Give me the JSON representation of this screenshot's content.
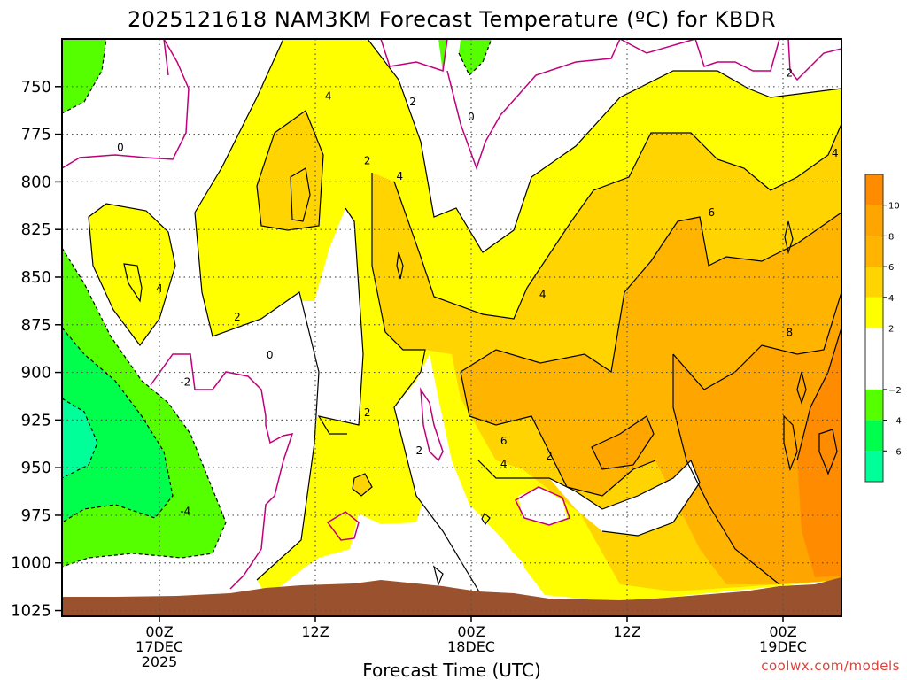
{
  "chart_data": {
    "type": "heatmap",
    "title": "2025121618 NAM3KM Forecast Temperature (ºC) for KBDR",
    "xlabel": "Forecast Time (UTC)",
    "ylabel": "",
    "y_ticks": [
      750,
      775,
      800,
      825,
      850,
      875,
      900,
      925,
      950,
      975,
      1000,
      1025
    ],
    "y_range": [
      725,
      1028
    ],
    "x_range_hours": [
      -7.5,
      52.5
    ],
    "x_ticks": [
      {
        "hour": 0,
        "lines": [
          "00Z",
          "17DEC",
          "2025"
        ]
      },
      {
        "hour": 12,
        "lines": [
          "12Z",
          "",
          ""
        ]
      },
      {
        "hour": 24,
        "lines": [
          "00Z",
          "18DEC",
          ""
        ]
      },
      {
        "hour": 36,
        "lines": [
          "12Z",
          "",
          ""
        ]
      },
      {
        "hour": 48,
        "lines": [
          "00Z",
          "19DEC",
          ""
        ]
      }
    ],
    "grid": true,
    "colorbar": {
      "ticks": [
        10,
        8,
        6,
        4,
        2,
        -2,
        -4,
        -6
      ],
      "bins": [
        {
          "from": 10,
          "to": 12,
          "color": "#ff8c00"
        },
        {
          "from": 8,
          "to": 10,
          "color": "#ffa500"
        },
        {
          "from": 6,
          "to": 8,
          "color": "#ffb400"
        },
        {
          "from": 4,
          "to": 6,
          "color": "#ffd400"
        },
        {
          "from": 2,
          "to": 4,
          "color": "#ffff00"
        },
        {
          "from": -2,
          "to": 2,
          "color": "#ffffff"
        },
        {
          "from": -4,
          "to": -2,
          "color": "#55ff00"
        },
        {
          "from": -6,
          "to": -4,
          "color": "#00ff4c"
        },
        {
          "from": -8,
          "to": -6,
          "color": "#00ff99"
        }
      ]
    },
    "contour_labels": [
      {
        "text": "0",
        "hour": -3,
        "p": 782
      },
      {
        "text": "4",
        "hour": 13,
        "p": 755
      },
      {
        "text": "2",
        "hour": 19.5,
        "p": 758
      },
      {
        "text": "0",
        "hour": 24,
        "p": 766
      },
      {
        "text": "2",
        "hour": 16,
        "p": 789
      },
      {
        "text": "4",
        "hour": 18.5,
        "p": 797
      },
      {
        "text": "6",
        "hour": 42.5,
        "p": 816
      },
      {
        "text": "4",
        "hour": 0,
        "p": 856
      },
      {
        "text": "4",
        "hour": 29.5,
        "p": 859
      },
      {
        "text": "2",
        "hour": 6,
        "p": 871
      },
      {
        "text": "0",
        "hour": 8.5,
        "p": 891
      },
      {
        "text": "8",
        "hour": 48.5,
        "p": 879
      },
      {
        "text": "-2",
        "hour": 2,
        "p": 905
      },
      {
        "text": "2",
        "hour": 16,
        "p": 921
      },
      {
        "text": "2",
        "hour": 20,
        "p": 941
      },
      {
        "text": "6",
        "hour": 26.5,
        "p": 936
      },
      {
        "text": "4",
        "hour": 26.5,
        "p": 948
      },
      {
        "text": "2",
        "hour": 30,
        "p": 944
      },
      {
        "text": "-4",
        "hour": 2,
        "p": 973
      },
      {
        "text": "2",
        "hour": 48.5,
        "p": 743
      },
      {
        "text": "4",
        "hour": 52,
        "p": 785
      }
    ]
  },
  "credit": "coolwx.com/models"
}
